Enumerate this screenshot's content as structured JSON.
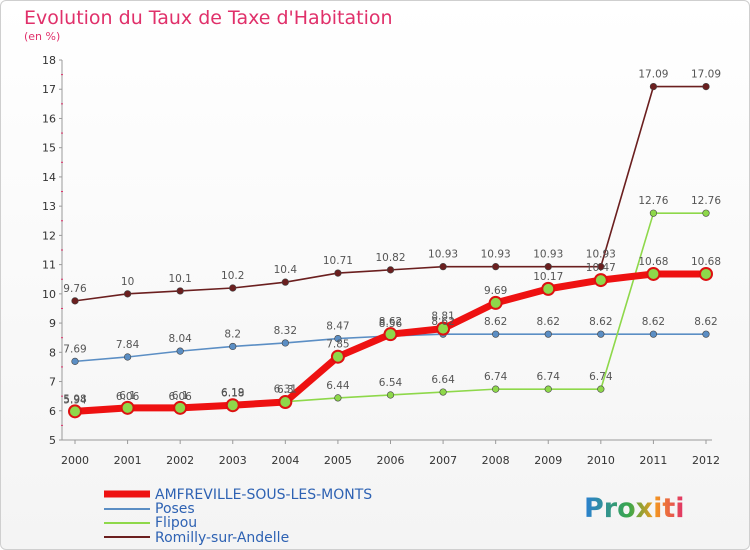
{
  "chart_data": {
    "type": "line",
    "title": "Evolution du Taux de Taxe d'Habitation",
    "subtitle": "(en %)",
    "xlabel": "",
    "ylabel": "",
    "categories": [
      "2000",
      "2001",
      "2002",
      "2003",
      "2004",
      "2005",
      "2006",
      "2007",
      "2008",
      "2009",
      "2010",
      "2011",
      "2012"
    ],
    "ylim": [
      5,
      18
    ],
    "yticks": [
      5,
      6,
      7,
      8,
      9,
      10,
      11,
      12,
      13,
      14,
      15,
      16,
      17,
      18
    ],
    "grid": false,
    "legend_position": "bottom-left",
    "series": [
      {
        "name": "Romilly-sur-Andelle",
        "color": "#6b1f1f",
        "labels": [
          "9.76",
          "10",
          "10.1",
          "10.2",
          "10.4",
          "10.71",
          "10.82",
          "10.93",
          "10.93",
          "10.93",
          "10.93",
          "17.09",
          "17.09"
        ],
        "values": [
          9.76,
          10,
          10.1,
          10.2,
          10.4,
          10.71,
          10.82,
          10.93,
          10.93,
          10.93,
          10.93,
          17.09,
          17.09
        ]
      },
      {
        "name": "Poses",
        "color": "#5b8ec4",
        "labels": [
          "7.69",
          "7.84",
          "8.04",
          "8.2",
          "8.32",
          "8.47",
          "8.56",
          "8.62",
          "8.62",
          "8.62",
          "8.62",
          "8.62",
          "8.62"
        ],
        "values": [
          7.69,
          7.84,
          8.04,
          8.2,
          8.32,
          8.47,
          8.56,
          8.62,
          8.62,
          8.62,
          8.62,
          8.62,
          8.62
        ]
      },
      {
        "name": "Flipou",
        "color": "#8ed84a",
        "labels": [
          "5.94",
          "6.06",
          "6.06",
          "6.18",
          "6.31",
          "6.44",
          "6.54",
          "6.64",
          "6.74",
          "6.74",
          "6.74",
          "12.76",
          "12.76"
        ],
        "values": [
          5.94,
          6.06,
          6.06,
          6.18,
          6.31,
          6.44,
          6.54,
          6.64,
          6.74,
          6.74,
          6.74,
          12.76,
          12.76
        ]
      },
      {
        "name": "AMFREVILLE-SOUS-LES-MONTS",
        "color": "#ee1111",
        "labels": [
          "5.98",
          "6.1",
          "6.1",
          "6.19",
          "6.3",
          "7.85",
          "8.62",
          "8.81",
          "9.69",
          "10.17",
          "10.47",
          "10.68",
          "10.68"
        ],
        "values": [
          5.98,
          6.1,
          6.1,
          6.19,
          6.3,
          7.85,
          8.62,
          8.81,
          9.69,
          10.17,
          10.47,
          10.68,
          10.68
        ]
      }
    ],
    "legend": [
      "AMFREVILLE-SOUS-LES-MONTS",
      "Poses",
      "Flipou",
      "Romilly-sur-Andelle"
    ]
  },
  "logo": {
    "text": "Proxiti"
  }
}
